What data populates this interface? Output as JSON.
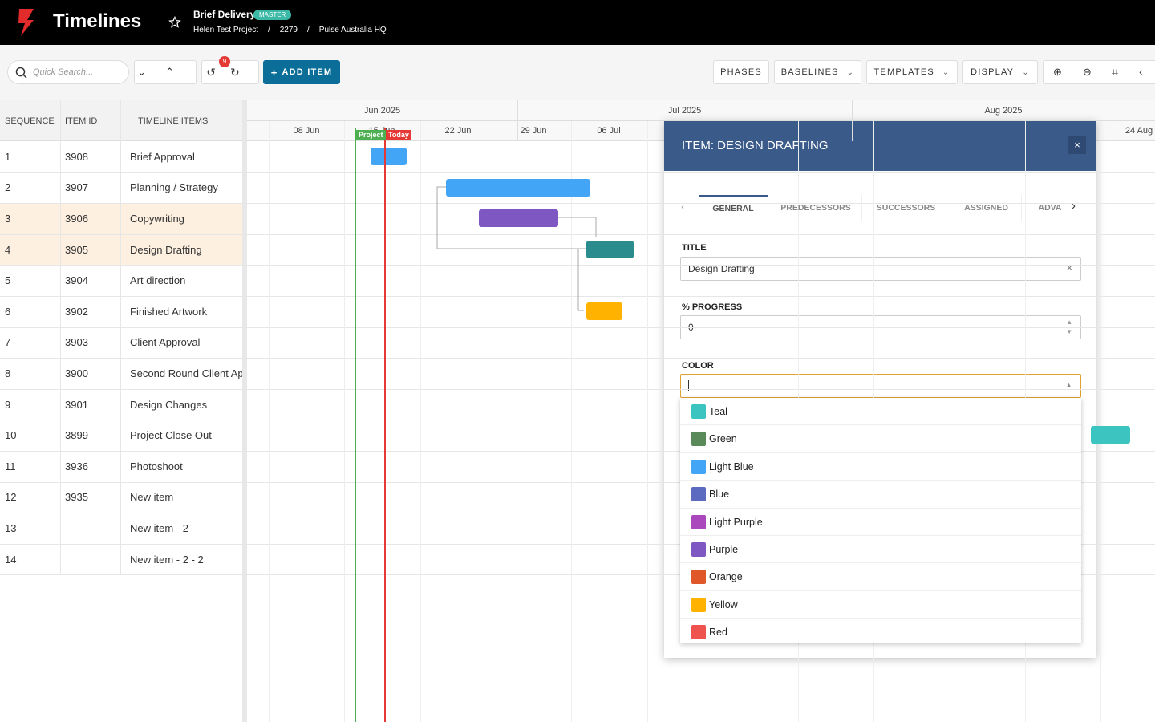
{
  "header": {
    "app_title": "Timelines",
    "project_name": "Brief Delivery",
    "badge": "MASTER",
    "breadcrumb": [
      "Helen Test Project",
      "2279",
      "Pulse Australia HQ"
    ],
    "separator": "/"
  },
  "toolbar": {
    "search_placeholder": "Quick Search...",
    "undo_count": "9",
    "add_item": "ADD ITEM",
    "buttons": [
      "PHASES",
      "BASELINES",
      "TEMPLATES",
      "DISPLAY"
    ]
  },
  "grid": {
    "columns": [
      "SEQUENCE",
      "ITEM ID",
      "TIMELINE ITEMS"
    ],
    "rows": [
      [
        "1",
        "3908",
        "Brief Approval"
      ],
      [
        "2",
        "3907",
        "Planning / Strategy"
      ],
      [
        "3",
        "3906",
        "Copywriting"
      ],
      [
        "4",
        "3905",
        "Design Drafting"
      ],
      [
        "5",
        "3904",
        "Art direction"
      ],
      [
        "6",
        "3902",
        "Finished Artwork"
      ],
      [
        "7",
        "3903",
        "Client Approval"
      ],
      [
        "8",
        "3900",
        "Second Round Client Approval"
      ],
      [
        "9",
        "3901",
        "Design Changes"
      ],
      [
        "10",
        "3899",
        "Project Close Out"
      ],
      [
        "11",
        "3936",
        "Photoshoot"
      ],
      [
        "12",
        "3935",
        "New item"
      ],
      [
        "13",
        "",
        "New item - 2"
      ],
      [
        "14",
        "",
        "New item - 2 - 2"
      ]
    ]
  },
  "timeline": {
    "months": [
      "Jun 2025",
      "Jul 2025",
      "Aug 2025"
    ],
    "weeks": [
      "08 Jun",
      "15 Jun",
      "22 Jun",
      "29 Jun",
      "06 Jul",
      "24 Aug"
    ],
    "project_marker": "Project",
    "today_marker": "Today"
  },
  "panel": {
    "title": "ITEM: DESIGN DRAFTING",
    "close": "×",
    "tabs": [
      "GENERAL",
      "PREDECESSORS",
      "SUCCESSORS",
      "ASSIGNED",
      "ADVA"
    ],
    "title_label": "TITLE",
    "title_value": "Design Drafting",
    "progress_label": "% PROGRESS",
    "progress_value": "0",
    "color_label": "COLOR",
    "color_options": [
      {
        "name": "Teal",
        "swatch": "#3cc4c0"
      },
      {
        "name": "Green",
        "swatch": "#5b8a5a"
      },
      {
        "name": "Light Blue",
        "swatch": "#42a5f5"
      },
      {
        "name": "Blue",
        "swatch": "#5c6bc0"
      },
      {
        "name": "Light Purple",
        "swatch": "#ab47bc"
      },
      {
        "name": "Purple",
        "swatch": "#7e57c2"
      },
      {
        "name": "Orange",
        "swatch": "#e0582a"
      },
      {
        "name": "Yellow",
        "swatch": "#ffb300"
      },
      {
        "name": "Red",
        "swatch": "#ef5350"
      }
    ]
  }
}
